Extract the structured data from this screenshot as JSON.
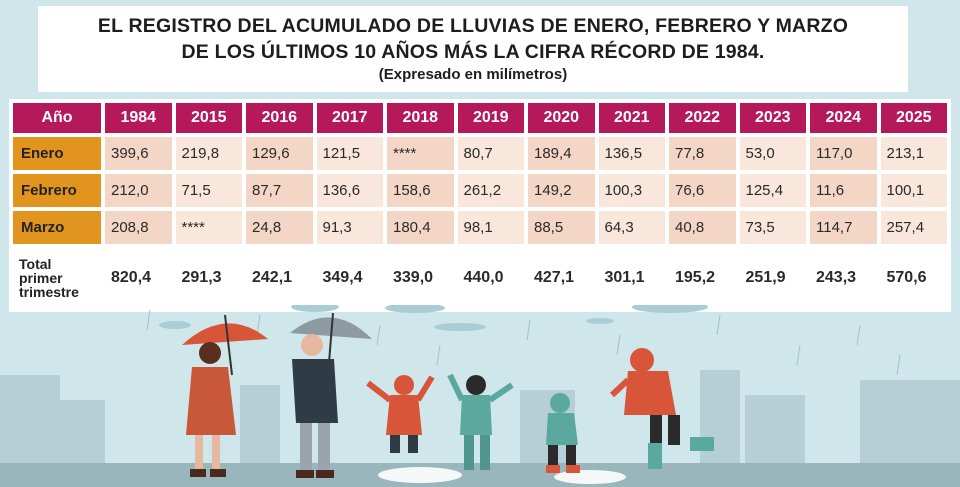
{
  "title": {
    "line1": "EL REGISTRO DEL ACUMULADO DE LLUVIAS DE ENERO, FEBRERO Y MARZO",
    "line2": "DE LOS ÚLTIMOS 10 AÑOS MÁS LA CIFRA RÉCORD DE 1984.",
    "subtitle": "(Expresado en milímetros)"
  },
  "chart_data": {
    "type": "table",
    "title": "EL REGISTRO DEL ACUMULADO DE LLUVIAS DE ENERO, FEBRERO Y MARZO DE LOS ÚLTIMOS 10 AÑOS MÁS LA CIFRA RÉCORD DE 1984.",
    "units": "(Expresado en milímetros)",
    "header_label": "Año",
    "columns": [
      "1984",
      "2015",
      "2016",
      "2017",
      "2018",
      "2019",
      "2020",
      "2021",
      "2022",
      "2023",
      "2024",
      "2025"
    ],
    "rows": [
      {
        "label": "Enero",
        "values": [
          "399,6",
          "219,8",
          "129,6",
          "121,5",
          "****",
          "80,7",
          "189,4",
          "136,5",
          "77,8",
          "53,0",
          "117,0",
          "213,1"
        ]
      },
      {
        "label": "Febrero",
        "values": [
          "212,0",
          "71,5",
          "87,7",
          "136,6",
          "158,6",
          "261,2",
          "149,2",
          "100,3",
          "76,6",
          "125,4",
          "11,6",
          "100,1"
        ]
      },
      {
        "label": "Marzo",
        "values": [
          "208,8",
          "****",
          "24,8",
          "91,3",
          "180,4",
          "98,1",
          "88,5",
          "64,3",
          "40,8",
          "73,5",
          "114,7",
          "257,4"
        ]
      }
    ],
    "total": {
      "label_lines": [
        "Total",
        "primer",
        "trimestre"
      ],
      "values": [
        "820,4",
        "291,3",
        "242,1",
        "349,4",
        "339,0",
        "440,0",
        "427,1",
        "301,1",
        "195,2",
        "251,9",
        "243,3",
        "570,6"
      ]
    }
  },
  "colors": {
    "header": "#b5195a",
    "rowlabel": "#e1951e",
    "cell": "#f3d6c6",
    "cell_alt": "#f8e7da",
    "sky": "#cfe6ea"
  }
}
